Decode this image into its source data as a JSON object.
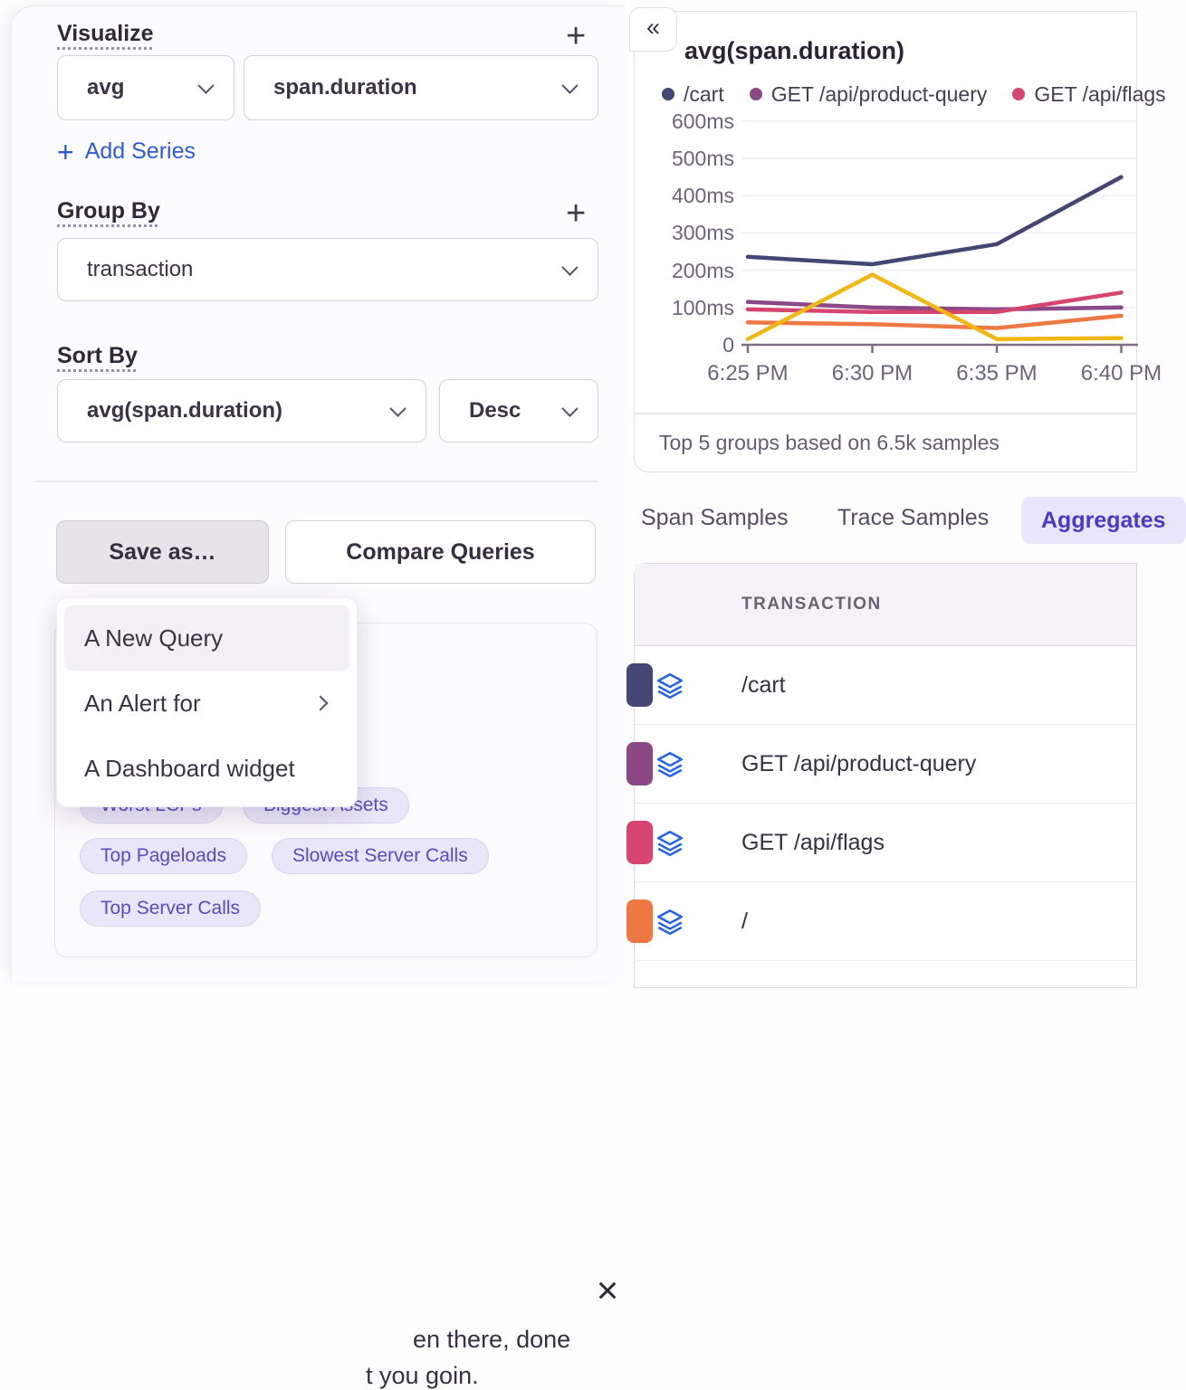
{
  "query_builder": {
    "visualize": {
      "label": "Visualize",
      "add_button": "+",
      "aggregate": "avg",
      "field": "span.duration",
      "add_series_plus": "+",
      "add_series": "Add Series"
    },
    "group_by": {
      "label": "Group By",
      "add_button": "+",
      "value": "transaction"
    },
    "sort_by": {
      "label": "Sort By",
      "field": "avg(span.duration)",
      "direction": "Desc"
    },
    "save_as_button": "Save as…",
    "compare_button": "Compare Queries"
  },
  "save_menu": {
    "items": [
      "A New Query",
      "An Alert for",
      "A Dashboard widget"
    ]
  },
  "promo": {
    "close_icon": "×",
    "visible_text_line1": "en there, done",
    "visible_text_line2": "t you goin.",
    "chips_row1": [
      "Worst LCPs",
      "Biggest Assets"
    ],
    "chips_row2": [
      "Top Pageloads",
      "Slowest Server Calls"
    ],
    "chips_row3": [
      "Top Server Calls"
    ]
  },
  "chart_panel": {
    "collapse_icon": "«"
  },
  "chart_data": {
    "type": "line",
    "title": "avg(span.duration)",
    "x": [
      "6:25 PM",
      "6:30 PM",
      "6:35 PM",
      "6:40 PM"
    ],
    "yticks": [
      {
        "v": 0,
        "label": "0"
      },
      {
        "v": 100,
        "label": "100ms"
      },
      {
        "v": 200,
        "label": "200ms"
      },
      {
        "v": 300,
        "label": "300ms"
      },
      {
        "v": 400,
        "label": "400ms"
      },
      {
        "v": 500,
        "label": "500ms"
      },
      {
        "v": 600,
        "label": "600ms"
      }
    ],
    "ylim": [
      0,
      620
    ],
    "unit": "ms",
    "legend_position": "top",
    "grid": true,
    "series": [
      {
        "name": "/cart",
        "color": "#444674",
        "values": [
          236,
          216,
          270,
          450
        ]
      },
      {
        "name": "GET /api/product-query",
        "color": "#8c4786",
        "values": [
          115,
          100,
          95,
          100
        ]
      },
      {
        "name": "GET /api/flags",
        "color": "#d6456f",
        "values": [
          95,
          88,
          88,
          140
        ]
      },
      {
        "name": "/",
        "color": "#ee7843",
        "values": [
          60,
          55,
          45,
          78
        ]
      },
      {
        "name": "",
        "color": "#f2b712",
        "values": [
          15,
          188,
          15,
          18
        ]
      }
    ],
    "footer": "Top 5 groups based on 6.5k samples"
  },
  "tabs": {
    "items": [
      "Span Samples",
      "Trace Samples",
      "Aggregates"
    ],
    "active": "Aggregates"
  },
  "table": {
    "header": "TRANSACTION",
    "rows": [
      {
        "transaction": "/cart",
        "color": "#444674"
      },
      {
        "transaction": "GET /api/product-query",
        "color": "#8c4786"
      },
      {
        "transaction": "GET /api/flags",
        "color": "#d6456f"
      },
      {
        "transaction": "/",
        "color": "#ee7843"
      }
    ]
  }
}
